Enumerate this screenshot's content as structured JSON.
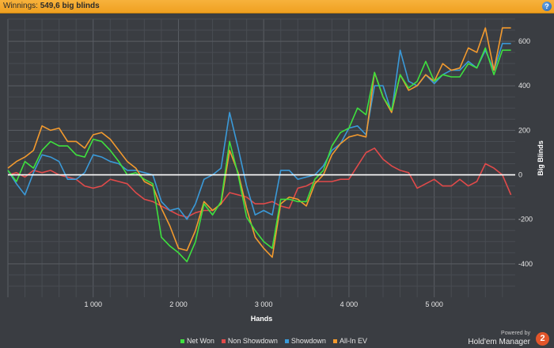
{
  "header": {
    "winnings_label": "Winnings:",
    "winnings_value": "549,6 big blinds",
    "help_glyph": "?"
  },
  "branding": {
    "powered_by": "Powered by",
    "product": "Hold'em Manager",
    "logo_glyph": "2"
  },
  "colors": {
    "background": "#3a3d42",
    "header": "#f0a020",
    "net_won": "#3ee03e",
    "non_showdown": "#e14a4a",
    "showdown": "#3a9ad9",
    "all_in_ev": "#f39a2e",
    "zero_line": "#ffffff"
  },
  "chart_data": {
    "type": "line",
    "xlabel": "Hands",
    "ylabel": "Big Blinds",
    "xlim": [
      0,
      5950
    ],
    "ylim": [
      -550,
      700
    ],
    "x_ticks": [
      1000,
      2000,
      3000,
      4000,
      5000
    ],
    "x_tick_labels": [
      "1 000",
      "2 000",
      "3 000",
      "4 000",
      "5 000"
    ],
    "y_ticks": [
      -400,
      -200,
      0,
      200,
      400,
      600
    ],
    "y_tick_labels": [
      "-400",
      "-200",
      "0",
      "200",
      "400",
      "600"
    ],
    "grid": true,
    "legend_position": "bottom",
    "series": [
      {
        "name": "Net Won",
        "color": "#3ee03e",
        "x": [
          0,
          100,
          200,
          300,
          400,
          500,
          600,
          700,
          800,
          900,
          1000,
          1100,
          1200,
          1300,
          1400,
          1500,
          1600,
          1700,
          1800,
          1900,
          2000,
          2100,
          2200,
          2300,
          2400,
          2500,
          2600,
          2700,
          2800,
          2900,
          3000,
          3100,
          3200,
          3300,
          3400,
          3500,
          3600,
          3700,
          3800,
          3900,
          4000,
          4100,
          4200,
          4300,
          4400,
          4500,
          4600,
          4700,
          4800,
          4900,
          5000,
          5100,
          5200,
          5300,
          5400,
          5500,
          5600,
          5700,
          5800,
          5900
        ],
        "y": [
          20,
          -30,
          60,
          30,
          110,
          150,
          130,
          130,
          90,
          80,
          160,
          150,
          110,
          60,
          0,
          10,
          -20,
          -40,
          -280,
          -320,
          -350,
          -390,
          -300,
          -130,
          -180,
          -120,
          150,
          0,
          -190,
          -250,
          -300,
          -330,
          -110,
          -110,
          -120,
          -120,
          -20,
          20,
          130,
          190,
          210,
          300,
          270,
          460,
          350,
          290,
          450,
          390,
          420,
          510,
          420,
          450,
          440,
          440,
          500,
          480,
          570,
          450,
          560,
          560
        ]
      },
      {
        "name": "Non Showdown",
        "color": "#e14a4a",
        "x": [
          0,
          100,
          200,
          300,
          400,
          500,
          600,
          700,
          800,
          900,
          1000,
          1100,
          1200,
          1300,
          1400,
          1500,
          1600,
          1700,
          1800,
          1900,
          2000,
          2100,
          2200,
          2300,
          2400,
          2500,
          2600,
          2700,
          2800,
          2900,
          3000,
          3100,
          3200,
          3300,
          3400,
          3500,
          3600,
          3700,
          3800,
          3900,
          4000,
          4100,
          4200,
          4300,
          4400,
          4500,
          4600,
          4700,
          4800,
          4900,
          5000,
          5100,
          5200,
          5300,
          5400,
          5500,
          5600,
          5700,
          5800,
          5900
        ],
        "y": [
          0,
          10,
          -10,
          20,
          10,
          20,
          0,
          -10,
          -20,
          -50,
          -60,
          -50,
          -20,
          -30,
          -40,
          -80,
          -110,
          -120,
          -140,
          -160,
          -180,
          -190,
          -170,
          -160,
          -160,
          -130,
          -80,
          -90,
          -100,
          -130,
          -130,
          -120,
          -140,
          -150,
          -60,
          -50,
          -30,
          -30,
          -30,
          -20,
          -20,
          40,
          100,
          120,
          70,
          40,
          20,
          10,
          -60,
          -40,
          -20,
          -50,
          -50,
          -20,
          -50,
          -30,
          50,
          30,
          0,
          -90
        ]
      },
      {
        "name": "Showdown",
        "color": "#3a9ad9",
        "x": [
          0,
          100,
          200,
          300,
          400,
          500,
          600,
          700,
          800,
          900,
          1000,
          1100,
          1200,
          1300,
          1400,
          1500,
          1600,
          1700,
          1800,
          1900,
          2000,
          2100,
          2200,
          2300,
          2400,
          2500,
          2600,
          2700,
          2800,
          2900,
          3000,
          3100,
          3200,
          3300,
          3400,
          3500,
          3600,
          3700,
          3800,
          3900,
          4000,
          4100,
          4200,
          4300,
          4400,
          4500,
          4600,
          4700,
          4800,
          4900,
          5000,
          5100,
          5200,
          5300,
          5400,
          5500,
          5600,
          5700,
          5800,
          5900
        ],
        "y": [
          20,
          -40,
          -90,
          10,
          90,
          80,
          60,
          -20,
          -20,
          10,
          90,
          80,
          60,
          50,
          20,
          20,
          10,
          0,
          -120,
          -160,
          -150,
          -200,
          -130,
          -20,
          0,
          30,
          280,
          120,
          -50,
          -180,
          -160,
          -180,
          20,
          20,
          -20,
          -10,
          0,
          40,
          110,
          140,
          210,
          220,
          180,
          400,
          400,
          280,
          560,
          420,
          400,
          450,
          410,
          450,
          470,
          470,
          510,
          480,
          560,
          470,
          590,
          590
        ]
      },
      {
        "name": "All-In EV",
        "color": "#f39a2e",
        "x": [
          0,
          100,
          200,
          300,
          400,
          500,
          600,
          700,
          800,
          900,
          1000,
          1100,
          1200,
          1300,
          1400,
          1500,
          1600,
          1700,
          1800,
          1900,
          2000,
          2100,
          2200,
          2300,
          2400,
          2500,
          2600,
          2700,
          2800,
          2900,
          3000,
          3100,
          3200,
          3300,
          3400,
          3500,
          3600,
          3700,
          3800,
          3900,
          4000,
          4100,
          4200,
          4300,
          4400,
          4500,
          4600,
          4700,
          4800,
          4900,
          5000,
          5100,
          5200,
          5300,
          5400,
          5500,
          5600,
          5700,
          5800,
          5900
        ],
        "y": [
          30,
          60,
          80,
          110,
          220,
          200,
          210,
          150,
          150,
          120,
          180,
          190,
          160,
          110,
          60,
          30,
          -30,
          -50,
          -150,
          -230,
          -330,
          -340,
          -250,
          -120,
          -160,
          -130,
          110,
          10,
          -150,
          -280,
          -330,
          -370,
          -130,
          -100,
          -110,
          -140,
          -40,
          0,
          90,
          140,
          170,
          180,
          170,
          460,
          350,
          280,
          450,
          380,
          400,
          450,
          420,
          500,
          470,
          480,
          570,
          550,
          660,
          470,
          660,
          660
        ]
      }
    ]
  }
}
